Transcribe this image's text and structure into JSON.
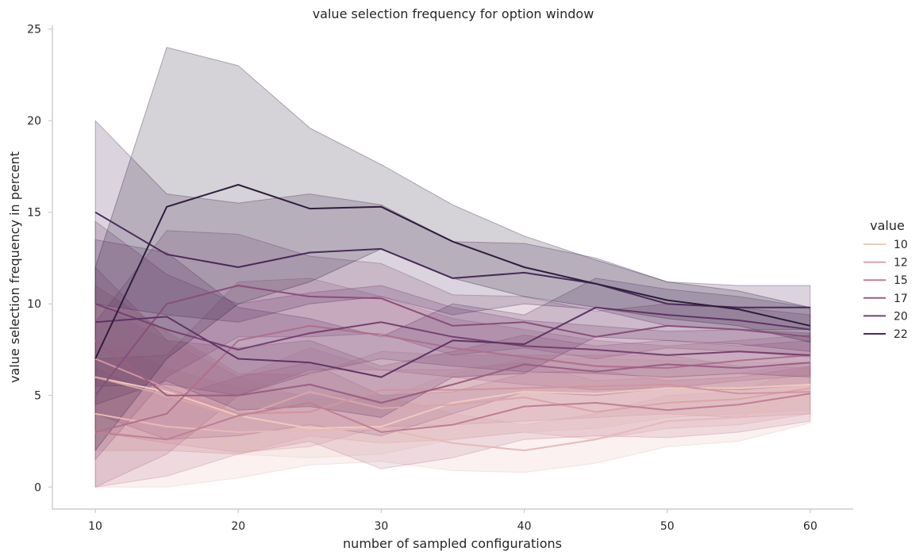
{
  "chart_data": {
    "type": "line",
    "title": "value selection frequency for option window",
    "xlabel": "number of sampled configurations",
    "ylabel": "value selection frequency in percent",
    "xlim": [
      7,
      63
    ],
    "ylim": [
      -1.2,
      25.2
    ],
    "xticks": [
      10,
      20,
      30,
      40,
      50,
      60
    ],
    "yticks": [
      0,
      5,
      10,
      15,
      20,
      25
    ],
    "grid": false,
    "legend": {
      "title": "value",
      "placement": "right"
    },
    "x": [
      10,
      15,
      20,
      25,
      30,
      35,
      40,
      45,
      50,
      55,
      60
    ],
    "series": [
      {
        "name": "10",
        "color": "#eecbbd",
        "values": [
          6.0,
          5.2,
          3.9,
          3.2,
          3.3,
          4.6,
          5.2,
          5.1,
          5.4,
          5.4,
          5.6
        ],
        "ci_lower": [
          2.0,
          2.0,
          1.8,
          1.6,
          1.8,
          2.6,
          3.0,
          3.2,
          3.8,
          4.0,
          4.2
        ],
        "ci_upper": [
          11.0,
          8.4,
          6.0,
          4.8,
          4.8,
          6.2,
          7.0,
          7.0,
          6.9,
          6.8,
          6.8
        ]
      },
      {
        "name": "",
        "color": "#e6bab6",
        "values": [
          4.0,
          3.3,
          3.0,
          3.1,
          3.2,
          2.4,
          2.0,
          2.6,
          3.6,
          3.8,
          5.2
        ],
        "ci_lower": [
          0.0,
          0.0,
          0.5,
          1.2,
          1.4,
          0.9,
          0.8,
          1.3,
          2.2,
          2.5,
          3.5
        ],
        "ci_upper": [
          8.0,
          6.5,
          5.4,
          5.0,
          5.0,
          4.0,
          3.4,
          4.0,
          5.0,
          5.2,
          6.6
        ]
      },
      {
        "name": "12",
        "color": "#dca5a8",
        "values": [
          6.0,
          5.0,
          3.8,
          5.2,
          4.3,
          4.5,
          4.9,
          4.1,
          4.6,
          4.8,
          5.4
        ],
        "ci_lower": [
          2.0,
          2.0,
          1.8,
          2.8,
          2.4,
          2.6,
          3.0,
          2.6,
          3.2,
          3.4,
          4.0
        ],
        "ci_upper": [
          10.0,
          8.0,
          6.0,
          7.6,
          6.4,
          6.4,
          6.8,
          5.8,
          6.0,
          6.2,
          6.8
        ]
      },
      {
        "name": "",
        "color": "#d3949f",
        "values": [
          7.0,
          5.4,
          4.0,
          4.1,
          5.3,
          5.3,
          5.4,
          5.5,
          5.6,
          5.1,
          5.2
        ],
        "ci_lower": [
          3.0,
          2.4,
          1.9,
          2.2,
          3.3,
          3.4,
          3.6,
          3.8,
          4.0,
          3.8,
          4.0
        ],
        "ci_upper": [
          11.0,
          8.5,
          6.2,
          6.1,
          7.4,
          7.2,
          7.2,
          7.2,
          7.2,
          6.6,
          6.5
        ]
      },
      {
        "name": "15",
        "color": "#c07e94",
        "values": [
          3.0,
          2.6,
          3.9,
          4.6,
          3.0,
          3.4,
          4.4,
          4.6,
          4.2,
          4.5,
          5.1
        ],
        "ci_lower": [
          0.0,
          0.6,
          1.8,
          2.5,
          1.0,
          1.6,
          2.6,
          2.8,
          2.7,
          3.0,
          3.6
        ],
        "ci_upper": [
          6.5,
          4.8,
          6.0,
          6.8,
          5.0,
          5.2,
          6.2,
          6.4,
          5.8,
          6.0,
          6.6
        ]
      },
      {
        "name": "",
        "color": "#b06f8c",
        "values": [
          3.0,
          4.0,
          8.0,
          8.8,
          8.3,
          7.6,
          7.1,
          6.6,
          6.5,
          6.9,
          7.2
        ],
        "ci_lower": [
          0.0,
          1.8,
          5.0,
          6.4,
          6.4,
          6.0,
          5.6,
          5.3,
          5.4,
          5.8,
          6.1
        ],
        "ci_upper": [
          7.0,
          7.2,
          11.2,
          11.4,
          10.4,
          9.2,
          8.6,
          8.0,
          7.7,
          8.0,
          8.3
        ]
      },
      {
        "name": "17",
        "color": "#9c5d83",
        "values": [
          8.0,
          5.0,
          5.0,
          5.6,
          4.6,
          5.6,
          6.7,
          6.3,
          6.7,
          6.5,
          6.8
        ],
        "ci_lower": [
          4.0,
          2.6,
          2.8,
          3.4,
          2.8,
          4.0,
          5.2,
          5.0,
          5.4,
          5.3,
          5.6
        ],
        "ci_upper": [
          12.0,
          8.0,
          7.6,
          8.0,
          6.6,
          7.4,
          8.3,
          7.7,
          8.0,
          7.7,
          8.0
        ]
      },
      {
        "name": "",
        "color": "#8a4e7a",
        "values": [
          5.0,
          10.0,
          11.0,
          10.4,
          10.3,
          8.8,
          9.0,
          8.2,
          8.8,
          8.6,
          8.2
        ],
        "ci_lower": [
          1.5,
          6.0,
          8.2,
          8.2,
          8.4,
          7.2,
          7.6,
          7.0,
          7.6,
          7.4,
          7.1
        ],
        "ci_upper": [
          9.0,
          14.0,
          13.8,
          12.6,
          12.2,
          10.5,
          10.4,
          9.6,
          10.0,
          9.8,
          9.4
        ]
      },
      {
        "name": "20",
        "color": "#764171",
        "values": [
          10.0,
          8.6,
          7.5,
          8.4,
          9.0,
          8.2,
          7.7,
          7.5,
          7.2,
          7.4,
          7.2
        ],
        "ci_lower": [
          5.5,
          5.6,
          5.0,
          6.2,
          7.0,
          6.6,
          6.3,
          6.2,
          6.0,
          6.2,
          6.0
        ],
        "ci_upper": [
          14.5,
          11.6,
          10.0,
          10.6,
          11.0,
          9.8,
          9.1,
          8.8,
          8.5,
          8.6,
          8.4
        ]
      },
      {
        "name": "",
        "color": "#5f3466",
        "values": [
          9.0,
          9.3,
          7.0,
          6.8,
          6.0,
          8.0,
          7.8,
          9.8,
          9.4,
          9.1,
          8.6
        ],
        "ci_lower": [
          4.5,
          5.8,
          4.2,
          4.4,
          3.8,
          6.0,
          6.2,
          8.2,
          8.0,
          7.8,
          7.4
        ],
        "ci_upper": [
          13.5,
          12.8,
          9.8,
          9.2,
          8.2,
          10.0,
          9.4,
          11.4,
          10.8,
          10.4,
          9.8
        ]
      },
      {
        "name": "22",
        "color": "#4a2a5a",
        "values": [
          15.0,
          12.7,
          12.0,
          12.8,
          13.0,
          11.4,
          11.7,
          11.1,
          10.0,
          9.8,
          9.8
        ],
        "ci_lower": [
          10.0,
          9.4,
          9.0,
          10.0,
          10.4,
          9.4,
          10.0,
          9.7,
          8.8,
          8.6,
          8.6
        ],
        "ci_upper": [
          20.0,
          16.0,
          15.5,
          16.0,
          15.4,
          13.4,
          13.3,
          12.5,
          11.2,
          11.0,
          11.0
        ]
      },
      {
        "name": "",
        "color": "#2d1e3e",
        "values": [
          7.0,
          15.3,
          16.5,
          15.2,
          15.3,
          13.4,
          12.0,
          11.1,
          10.2,
          9.7,
          8.8
        ],
        "ci_lower": [
          2.0,
          7.0,
          10.0,
          11.2,
          13.0,
          11.4,
          10.4,
          9.8,
          9.2,
          8.8,
          7.9
        ],
        "ci_upper": [
          12.0,
          24.0,
          23.0,
          19.6,
          17.6,
          15.4,
          13.7,
          12.4,
          11.2,
          10.7,
          9.8
        ]
      }
    ]
  }
}
